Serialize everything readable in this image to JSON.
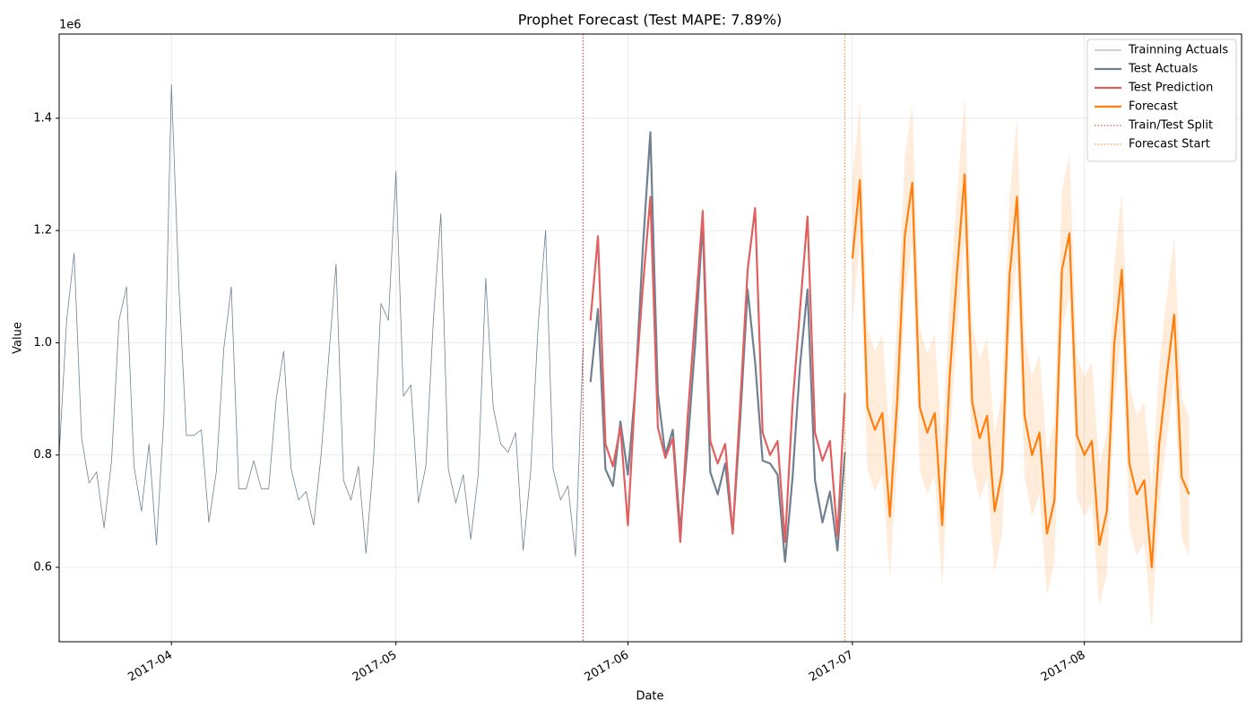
{
  "chart_data": {
    "type": "line",
    "title": "Prophet Forecast (Test MAPE: 7.89%)",
    "x_label": "Date",
    "y_label": "Value",
    "y_offset_label": "1e6",
    "xlim": [
      "2017-03-17",
      "2017-08-22"
    ],
    "xticks": [
      {
        "value": "2017-04-01",
        "label": "2017-04"
      },
      {
        "value": "2017-05-01",
        "label": "2017-05"
      },
      {
        "value": "2017-06-01",
        "label": "2017-06"
      },
      {
        "value": "2017-07-01",
        "label": "2017-07"
      },
      {
        "value": "2017-08-01",
        "label": "2017-08"
      }
    ],
    "ylim": [
      0.4675,
      1.55
    ],
    "yticks": [
      0.6,
      0.8,
      {
        "value": 1,
        "label": "1.0"
      },
      1.2,
      1.4
    ],
    "grid": true,
    "legend": "upper right",
    "series": [
      {
        "name": "Trainning Actuals",
        "color": "#708090",
        "x": [
          "2017-03-17",
          "2017-03-18",
          "2017-03-19",
          "2017-03-20",
          "2017-03-21",
          "2017-03-22",
          "2017-03-23",
          "2017-03-24",
          "2017-03-25",
          "2017-03-26",
          "2017-03-27",
          "2017-03-28",
          "2017-03-29",
          "2017-03-30",
          "2017-03-31",
          "2017-04-01",
          "2017-04-02",
          "2017-04-03",
          "2017-04-04",
          "2017-04-05",
          "2017-04-06",
          "2017-04-07",
          "2017-04-08",
          "2017-04-09",
          "2017-04-10",
          "2017-04-11",
          "2017-04-12",
          "2017-04-13",
          "2017-04-14",
          "2017-04-15",
          "2017-04-16",
          "2017-04-17",
          "2017-04-18",
          "2017-04-19",
          "2017-04-20",
          "2017-04-21",
          "2017-04-22",
          "2017-04-23",
          "2017-04-24",
          "2017-04-25",
          "2017-04-26",
          "2017-04-27",
          "2017-04-28",
          "2017-04-29",
          "2017-04-30",
          "2017-05-01",
          "2017-05-02",
          "2017-05-03",
          "2017-05-04",
          "2017-05-05",
          "2017-05-06",
          "2017-05-07",
          "2017-05-08",
          "2017-05-09",
          "2017-05-10",
          "2017-05-11",
          "2017-05-12",
          "2017-05-13",
          "2017-05-14",
          "2017-05-15",
          "2017-05-16",
          "2017-05-17",
          "2017-05-18",
          "2017-05-19",
          "2017-05-20",
          "2017-05-21",
          "2017-05-22",
          "2017-05-23",
          "2017-05-24",
          "2017-05-25",
          "2017-05-26"
        ],
        "values": [
          0.8,
          1.04,
          1.16,
          0.83,
          0.75,
          0.77,
          0.67,
          0.79,
          1.04,
          1.1,
          0.78,
          0.7,
          0.82,
          0.64,
          0.87,
          1.46,
          1.1,
          0.835,
          0.835,
          0.845,
          0.68,
          0.77,
          0.99,
          1.1,
          0.74,
          0.74,
          0.79,
          0.74,
          0.74,
          0.9,
          0.985,
          0.775,
          0.72,
          0.735,
          0.675,
          0.8,
          0.97,
          1.14,
          0.755,
          0.72,
          0.78,
          0.625,
          0.79,
          1.07,
          1.04,
          1.305,
          0.905,
          0.925,
          0.715,
          0.78,
          1.04,
          1.23,
          0.775,
          0.715,
          0.765,
          0.65,
          0.765,
          1.115,
          0.885,
          0.82,
          0.805,
          0.84,
          0.63,
          0.77,
          1.03,
          1.2,
          0.775,
          0.72,
          0.745,
          0.62,
          0.99
        ]
      },
      {
        "name": "Test Actuals",
        "color": "#708090",
        "x": [
          "2017-05-27",
          "2017-05-28",
          "2017-05-29",
          "2017-05-30",
          "2017-05-31",
          "2017-06-01",
          "2017-06-02",
          "2017-06-03",
          "2017-06-04",
          "2017-06-05",
          "2017-06-06",
          "2017-06-07",
          "2017-06-08",
          "2017-06-09",
          "2017-06-10",
          "2017-06-11",
          "2017-06-12",
          "2017-06-13",
          "2017-06-14",
          "2017-06-15",
          "2017-06-16",
          "2017-06-17",
          "2017-06-18",
          "2017-06-19",
          "2017-06-20",
          "2017-06-21",
          "2017-06-22",
          "2017-06-23",
          "2017-06-24",
          "2017-06-25",
          "2017-06-26",
          "2017-06-27",
          "2017-06-28",
          "2017-06-29",
          "2017-06-30"
        ],
        "values": [
          0.93,
          1.06,
          0.775,
          0.745,
          0.86,
          0.765,
          0.92,
          1.17,
          1.375,
          0.91,
          0.8,
          0.845,
          0.665,
          0.82,
          1.0,
          1.215,
          0.77,
          0.73,
          0.785,
          0.66,
          0.86,
          1.095,
          0.965,
          0.79,
          0.785,
          0.765,
          0.61,
          0.76,
          0.96,
          1.095,
          0.755,
          0.68,
          0.735,
          0.63,
          0.805
        ]
      },
      {
        "name": "Test Prediction",
        "color": "#e06060",
        "x": [
          "2017-05-27",
          "2017-05-28",
          "2017-05-29",
          "2017-05-30",
          "2017-05-31",
          "2017-06-01",
          "2017-06-02",
          "2017-06-03",
          "2017-06-04",
          "2017-06-05",
          "2017-06-06",
          "2017-06-07",
          "2017-06-08",
          "2017-06-09",
          "2017-06-10",
          "2017-06-11",
          "2017-06-12",
          "2017-06-13",
          "2017-06-14",
          "2017-06-15",
          "2017-06-16",
          "2017-06-17",
          "2017-06-18",
          "2017-06-19",
          "2017-06-20",
          "2017-06-21",
          "2017-06-22",
          "2017-06-23",
          "2017-06-24",
          "2017-06-25",
          "2017-06-26",
          "2017-06-27",
          "2017-06-28",
          "2017-06-29",
          "2017-06-30"
        ],
        "values": [
          1.04,
          1.19,
          0.82,
          0.78,
          0.85,
          0.675,
          0.92,
          1.1,
          1.26,
          0.85,
          0.795,
          0.83,
          0.645,
          0.87,
          1.05,
          1.235,
          0.825,
          0.785,
          0.82,
          0.66,
          0.89,
          1.13,
          1.24,
          0.84,
          0.8,
          0.825,
          0.645,
          0.89,
          1.06,
          1.225,
          0.84,
          0.79,
          0.825,
          0.655,
          0.91
        ]
      },
      {
        "name": "Forecast",
        "color": "#ff7f0e",
        "x": [
          "2017-07-01",
          "2017-07-02",
          "2017-07-03",
          "2017-07-04",
          "2017-07-05",
          "2017-07-06",
          "2017-07-07",
          "2017-07-08",
          "2017-07-09",
          "2017-07-10",
          "2017-07-11",
          "2017-07-12",
          "2017-07-13",
          "2017-07-14",
          "2017-07-15",
          "2017-07-16",
          "2017-07-17",
          "2017-07-18",
          "2017-07-19",
          "2017-07-20",
          "2017-07-21",
          "2017-07-22",
          "2017-07-23",
          "2017-07-24",
          "2017-07-25",
          "2017-07-26",
          "2017-07-27",
          "2017-07-28",
          "2017-07-29",
          "2017-07-30",
          "2017-07-31",
          "2017-08-01",
          "2017-08-02",
          "2017-08-03",
          "2017-08-04",
          "2017-08-05",
          "2017-08-06",
          "2017-08-07",
          "2017-08-08",
          "2017-08-09",
          "2017-08-10",
          "2017-08-11",
          "2017-08-12",
          "2017-08-13",
          "2017-08-14",
          "2017-08-15"
        ],
        "values": [
          1.15,
          1.29,
          0.885,
          0.845,
          0.875,
          0.69,
          0.9,
          1.19,
          1.285,
          0.885,
          0.84,
          0.875,
          0.675,
          0.94,
          1.13,
          1.3,
          0.895,
          0.83,
          0.87,
          0.7,
          0.77,
          1.12,
          1.26,
          0.87,
          0.8,
          0.84,
          0.66,
          0.72,
          1.13,
          1.195,
          0.835,
          0.8,
          0.825,
          0.64,
          0.7,
          1.0,
          1.13,
          0.785,
          0.73,
          0.755,
          0.6,
          0.82,
          0.94,
          1.05,
          0.76,
          0.73
        ],
        "upper": [
          1.29,
          1.43,
          1.025,
          0.985,
          1.015,
          0.83,
          1.04,
          1.33,
          1.425,
          1.025,
          0.98,
          1.015,
          0.815,
          1.08,
          1.27,
          1.44,
          1.035,
          0.97,
          1.01,
          0.84,
          0.91,
          1.26,
          1.4,
          1.01,
          0.94,
          0.98,
          0.8,
          0.86,
          1.27,
          1.335,
          0.975,
          0.94,
          0.965,
          0.78,
          0.84,
          1.14,
          1.27,
          0.925,
          0.87,
          0.895,
          0.74,
          0.96,
          1.08,
          1.19,
          0.9,
          0.87
        ],
        "lower": [
          1.04,
          1.18,
          0.775,
          0.735,
          0.765,
          0.58,
          0.79,
          1.08,
          1.175,
          0.775,
          0.73,
          0.765,
          0.565,
          0.83,
          1.02,
          1.19,
          0.785,
          0.72,
          0.76,
          0.59,
          0.66,
          1.01,
          1.15,
          0.76,
          0.69,
          0.73,
          0.55,
          0.61,
          1.02,
          1.085,
          0.725,
          0.69,
          0.715,
          0.53,
          0.59,
          0.89,
          1.02,
          0.675,
          0.62,
          0.645,
          0.49,
          0.71,
          0.83,
          0.94,
          0.65,
          0.62
        ]
      }
    ],
    "vlines": [
      {
        "name": "Train/Test Split",
        "x": "2017-05-26",
        "color": "#d62728"
      },
      {
        "name": "Forecast Start",
        "x": "2017-06-30",
        "color": "#ff7f0e"
      }
    ]
  }
}
